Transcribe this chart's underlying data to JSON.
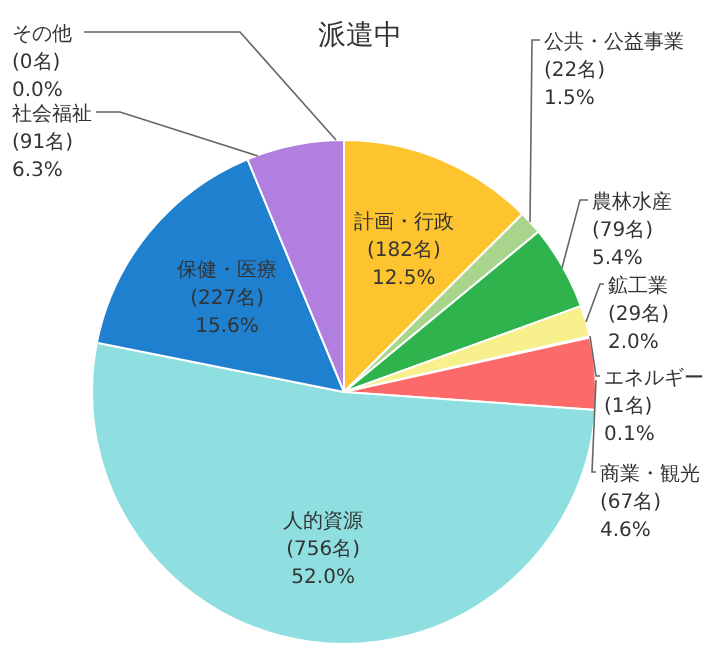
{
  "chart_data": {
    "type": "pie",
    "title": "派遣中",
    "categories": [
      "計画・行政",
      "公共・公益事業",
      "農林水産",
      "鉱工業",
      "エネルギー",
      "商業・観光",
      "人的資源",
      "保健・医療",
      "社会福祉",
      "その他"
    ],
    "values": [
      182,
      22,
      79,
      29,
      1,
      67,
      756,
      227,
      91,
      0
    ],
    "value_labels": [
      "(182名)\n12.5%",
      "(22名)\n1.5%",
      "(79名)\n5.4%",
      "(29名)\n2.0%",
      "(1名)\n0.1%",
      "(67名)\n4.6%",
      "(756名)\n52.0%",
      "(227名)\n15.6%",
      "(91名)\n6.3%",
      "(0名)\n0.0%"
    ],
    "colors": [
      "#fec42f",
      "#a8d58b",
      "#2fb34c",
      "#f7f08c",
      "#f4a6a0",
      "#fd6a6a",
      "#8fdee0",
      "#1f80cf",
      "#b07fdf",
      "#8c8c8c"
    ]
  }
}
